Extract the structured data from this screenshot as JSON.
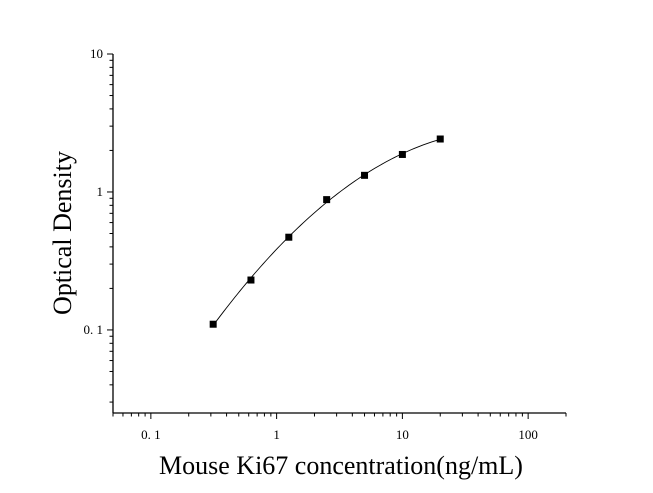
{
  "chart_data": {
    "type": "scatter",
    "title": "",
    "xlabel": "Mouse Ki67 concentration(ng/mL)",
    "ylabel": "Optical Density",
    "xscale": "log",
    "yscale": "log",
    "xlim": [
      0.05,
      200
    ],
    "ylim": [
      0.025,
      10
    ],
    "grid": false,
    "legend": "none",
    "x_ticks": [
      0.1,
      1,
      10,
      100
    ],
    "x_tick_labels": [
      "0. 1",
      "1",
      "10",
      "100"
    ],
    "y_ticks": [
      0.1,
      1,
      10
    ],
    "y_tick_labels": [
      "0. 1",
      "1",
      "10"
    ],
    "series": [
      {
        "marker": "square",
        "color": "#000000",
        "x": [
          0.313,
          0.625,
          1.25,
          2.5,
          5,
          10,
          20
        ],
        "y": [
          0.11,
          0.23,
          0.47,
          0.88,
          1.32,
          1.87,
          2.42
        ]
      }
    ],
    "fit_curve": {
      "color": "#000000",
      "x_range": [
        0.313,
        20
      ]
    }
  }
}
